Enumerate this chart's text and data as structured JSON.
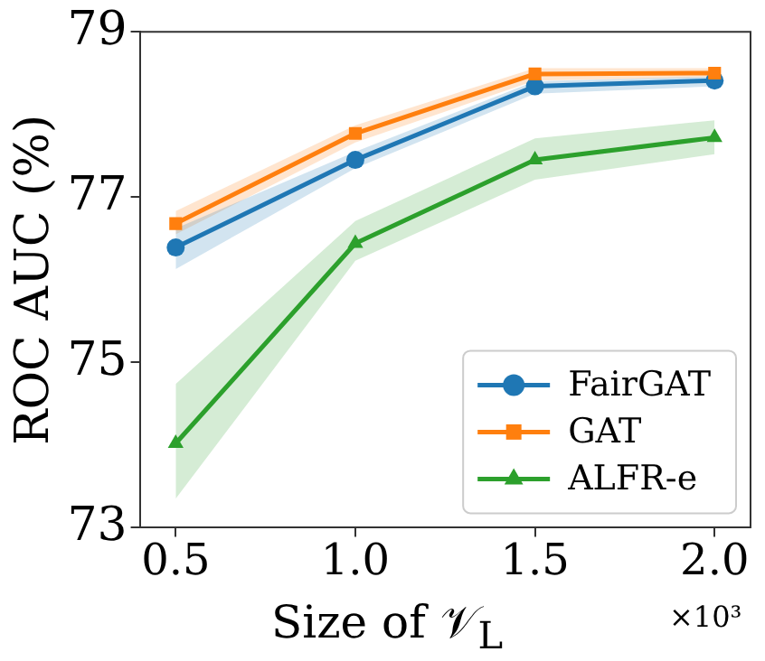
{
  "chart_data": {
    "type": "line",
    "xlabel": "Size of 𝒱$_{L}$",
    "ylabel": "ROC AUC (%)",
    "annotations": [
      "×10³"
    ],
    "x": [
      0.5,
      1.0,
      1.5,
      2.0
    ],
    "xlim": [
      0.4,
      2.1
    ],
    "xticks": [
      {
        "value": 0.5,
        "label": "0.5"
      },
      {
        "value": 1,
        "label": "1.0"
      },
      {
        "value": 1.5,
        "label": "1.5"
      },
      {
        "value": 2,
        "label": "2.0"
      }
    ],
    "ylim": [
      73,
      79
    ],
    "yticks": [
      73,
      75,
      77,
      79
    ],
    "grid": false,
    "legend": "bottom right",
    "line_style": "solid",
    "series": [
      {
        "name": "FairGAT",
        "color": "#1f77b4",
        "marker": "circle",
        "values": [
          76.39,
          77.45,
          78.34,
          78.41
        ],
        "lower": [
          76.13,
          77.35,
          78.25,
          78.34
        ],
        "upper": [
          76.62,
          77.55,
          78.4,
          78.46
        ]
      },
      {
        "name": "GAT",
        "color": "#ff7f0e",
        "marker": "square",
        "values": [
          76.68,
          77.77,
          78.49,
          78.5
        ],
        "lower": [
          76.55,
          77.66,
          78.41,
          78.45
        ],
        "upper": [
          76.83,
          77.87,
          78.56,
          78.56
        ]
      },
      {
        "name": "ALFR-e",
        "color": "#2ca02c",
        "marker": "triangle",
        "values": [
          74.02,
          76.44,
          77.45,
          77.72
        ],
        "lower": [
          73.35,
          76.23,
          77.21,
          77.52
        ],
        "upper": [
          74.74,
          76.71,
          77.71,
          77.93
        ]
      }
    ]
  }
}
